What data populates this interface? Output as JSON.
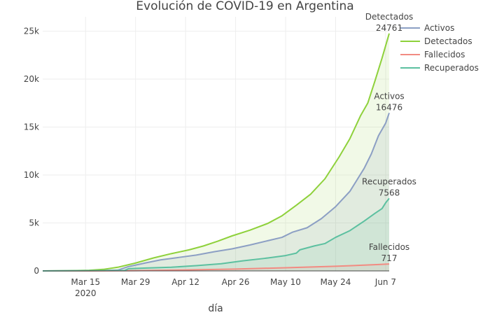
{
  "chart_data": {
    "type": "area",
    "title": "Evolución de COVID-19 en Argentina",
    "xlabel": "día",
    "ylabel": "",
    "grid": true,
    "legend_position": "top-right",
    "x_start": "2020-03-03",
    "x_ticks": [
      {
        "date": "2020-03-15",
        "label": "Mar 15",
        "sublabel": "2020"
      },
      {
        "date": "2020-03-29",
        "label": "Mar 29"
      },
      {
        "date": "2020-04-12",
        "label": "Apr 12"
      },
      {
        "date": "2020-04-26",
        "label": "Apr 26"
      },
      {
        "date": "2020-05-10",
        "label": "May 10"
      },
      {
        "date": "2020-05-24",
        "label": "May 24"
      },
      {
        "date": "2020-06-07",
        "label": "Jun 7"
      }
    ],
    "xlim": [
      "2020-03-03",
      "2020-06-08"
    ],
    "ylim": [
      0,
      26500
    ],
    "y_ticks": [
      0,
      5000,
      10000,
      15000,
      20000,
      25000
    ],
    "y_tick_labels": [
      "0",
      "5k",
      "10k",
      "15k",
      "20k",
      "25k"
    ],
    "series": [
      {
        "name": "Activos",
        "color": "#8c9fc4",
        "fill": "rgba(140,159,196,0.16)",
        "points": [
          [
            "2020-03-03",
            0
          ],
          [
            "2020-03-08",
            10
          ],
          [
            "2020-03-14",
            30
          ],
          [
            "2020-03-19",
            50
          ],
          [
            "2020-03-24",
            80
          ],
          [
            "2020-03-27",
            450
          ],
          [
            "2020-04-01",
            850
          ],
          [
            "2020-04-05",
            1150
          ],
          [
            "2020-04-10",
            1400
          ],
          [
            "2020-04-15",
            1650
          ],
          [
            "2020-04-20",
            2000
          ],
          [
            "2020-04-25",
            2300
          ],
          [
            "2020-04-30",
            2700
          ],
          [
            "2020-05-05",
            3150
          ],
          [
            "2020-05-09",
            3500
          ],
          [
            "2020-05-12",
            4050
          ],
          [
            "2020-05-16",
            4500
          ],
          [
            "2020-05-20",
            5450
          ],
          [
            "2020-05-24",
            6700
          ],
          [
            "2020-05-28",
            8300
          ],
          [
            "2020-06-01",
            10700
          ],
          [
            "2020-06-03",
            12200
          ],
          [
            "2020-06-05",
            14100
          ],
          [
            "2020-06-07",
            15400
          ],
          [
            "2020-06-08",
            16476
          ]
        ]
      },
      {
        "name": "Detectados",
        "color": "#8ed13b",
        "fill": "rgba(142,209,59,0.12)",
        "points": [
          [
            "2020-03-03",
            1
          ],
          [
            "2020-03-10",
            20
          ],
          [
            "2020-03-16",
            60
          ],
          [
            "2020-03-20",
            160
          ],
          [
            "2020-03-24",
            380
          ],
          [
            "2020-03-29",
            820
          ],
          [
            "2020-04-03",
            1350
          ],
          [
            "2020-04-08",
            1800
          ],
          [
            "2020-04-13",
            2200
          ],
          [
            "2020-04-17",
            2600
          ],
          [
            "2020-04-21",
            3100
          ],
          [
            "2020-04-25",
            3650
          ],
          [
            "2020-04-30",
            4250
          ],
          [
            "2020-05-05",
            4950
          ],
          [
            "2020-05-09",
            5750
          ],
          [
            "2020-05-13",
            6850
          ],
          [
            "2020-05-17",
            8000
          ],
          [
            "2020-05-21",
            9600
          ],
          [
            "2020-05-25",
            11900
          ],
          [
            "2020-05-28",
            13800
          ],
          [
            "2020-05-31",
            16200
          ],
          [
            "2020-06-02",
            17500
          ],
          [
            "2020-06-04",
            19800
          ],
          [
            "2020-06-06",
            22200
          ],
          [
            "2020-06-08",
            24761
          ]
        ]
      },
      {
        "name": "Fallecidos",
        "color": "#f28b82",
        "fill": "rgba(242,139,130,0.10)",
        "points": [
          [
            "2020-03-03",
            0
          ],
          [
            "2020-03-15",
            2
          ],
          [
            "2020-03-29",
            30
          ],
          [
            "2020-04-12",
            100
          ],
          [
            "2020-04-26",
            190
          ],
          [
            "2020-05-10",
            330
          ],
          [
            "2020-05-24",
            480
          ],
          [
            "2020-06-01",
            600
          ],
          [
            "2020-06-05",
            670
          ],
          [
            "2020-06-08",
            717
          ]
        ]
      },
      {
        "name": "Recuperados",
        "color": "#5cc0a0",
        "fill": "rgba(92,192,160,0.12)",
        "points": [
          [
            "2020-03-03",
            0
          ],
          [
            "2020-03-26",
            50
          ],
          [
            "2020-03-27",
            230
          ],
          [
            "2020-04-01",
            300
          ],
          [
            "2020-04-08",
            380
          ],
          [
            "2020-04-15",
            550
          ],
          [
            "2020-04-22",
            750
          ],
          [
            "2020-04-28",
            1050
          ],
          [
            "2020-05-04",
            1300
          ],
          [
            "2020-05-10",
            1600
          ],
          [
            "2020-05-13",
            1850
          ],
          [
            "2020-05-14",
            2200
          ],
          [
            "2020-05-18",
            2600
          ],
          [
            "2020-05-21",
            2850
          ],
          [
            "2020-05-24",
            3500
          ],
          [
            "2020-05-28",
            4200
          ],
          [
            "2020-06-01",
            5200
          ],
          [
            "2020-06-04",
            6000
          ],
          [
            "2020-06-06",
            6500
          ],
          [
            "2020-06-07",
            7100
          ],
          [
            "2020-06-08",
            7568
          ]
        ]
      }
    ],
    "end_labels": [
      {
        "series": "Detectados",
        "name": "Detectados",
        "value": "24761"
      },
      {
        "series": "Activos",
        "name": "Activos",
        "value": "16476"
      },
      {
        "series": "Recuperados",
        "name": "Recuperados",
        "value": "7568"
      },
      {
        "series": "Fallecidos",
        "name": "Fallecidos",
        "value": "717"
      }
    ]
  }
}
